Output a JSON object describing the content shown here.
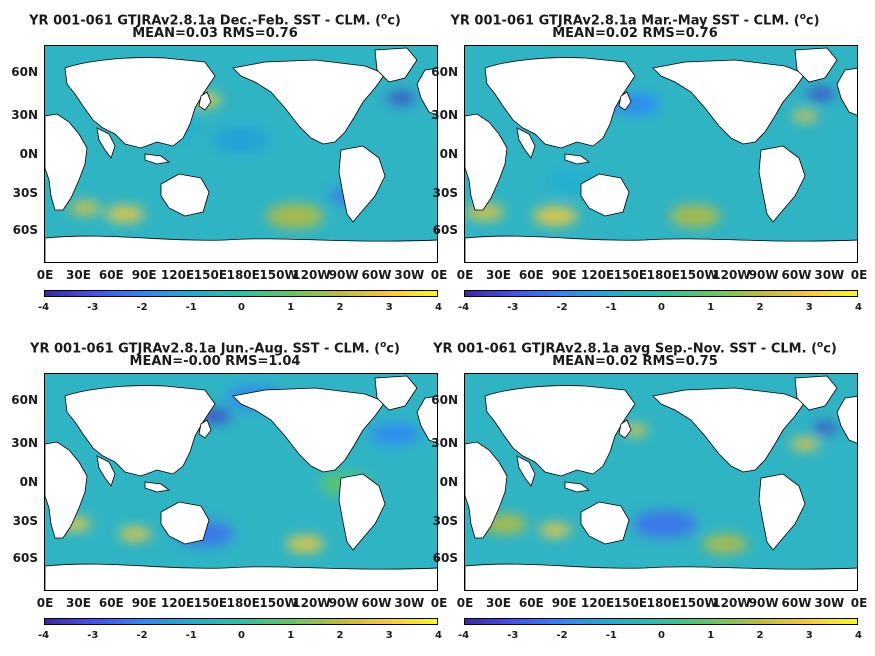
{
  "panels": [
    {
      "title_main": "YR 001-061 GTJRAv2.8.1a  Dec.-Feb. SST - CLM. (",
      "title_sup": "o",
      "title_end": "c)",
      "stats": "MEAN=0.03   RMS=0.76"
    },
    {
      "title_main": "YR 001-061 GTJRAv2.8.1a Mar.-May SST - CLM. (",
      "title_sup": "o",
      "title_end": "c)",
      "stats": "MEAN=0.02   RMS=0.76"
    },
    {
      "title_main": "YR 001-061 GTJRAv2.8.1a Jun.-Aug. SST - CLM. (",
      "title_sup": "o",
      "title_end": "c)",
      "stats": "MEAN=-0.00   RMS=1.04"
    },
    {
      "title_main": "YR 001-061 GTJRAv2.8.1a avg Sep.-Nov. SST - CLM. (",
      "title_sup": "o",
      "title_end": "c)",
      "stats": "MEAN=0.02   RMS=0.75"
    }
  ],
  "lat_labels": [
    "60N",
    "30N",
    "0N",
    "30S",
    "60S"
  ],
  "lon_labels": [
    "0E",
    "30E",
    "60E",
    "90E",
    "120E",
    "150E",
    "180E",
    "150W",
    "120W",
    "90W",
    "60W",
    "30W",
    "0E"
  ],
  "colorbar": {
    "ticks": [
      "-4",
      "-3",
      "-2",
      "-1",
      "0",
      "1",
      "2",
      "3",
      "4"
    ],
    "colors": [
      "#3e26a8",
      "#4352ee",
      "#2e87f7",
      "#1fafd2",
      "#27c2aa",
      "#5fc862",
      "#bcbc3a",
      "#f7c935",
      "#f9fb15"
    ]
  },
  "colors": {
    "ocean_base": "#2fb4c4",
    "land": "#ffffff",
    "coast": "#000000"
  }
}
